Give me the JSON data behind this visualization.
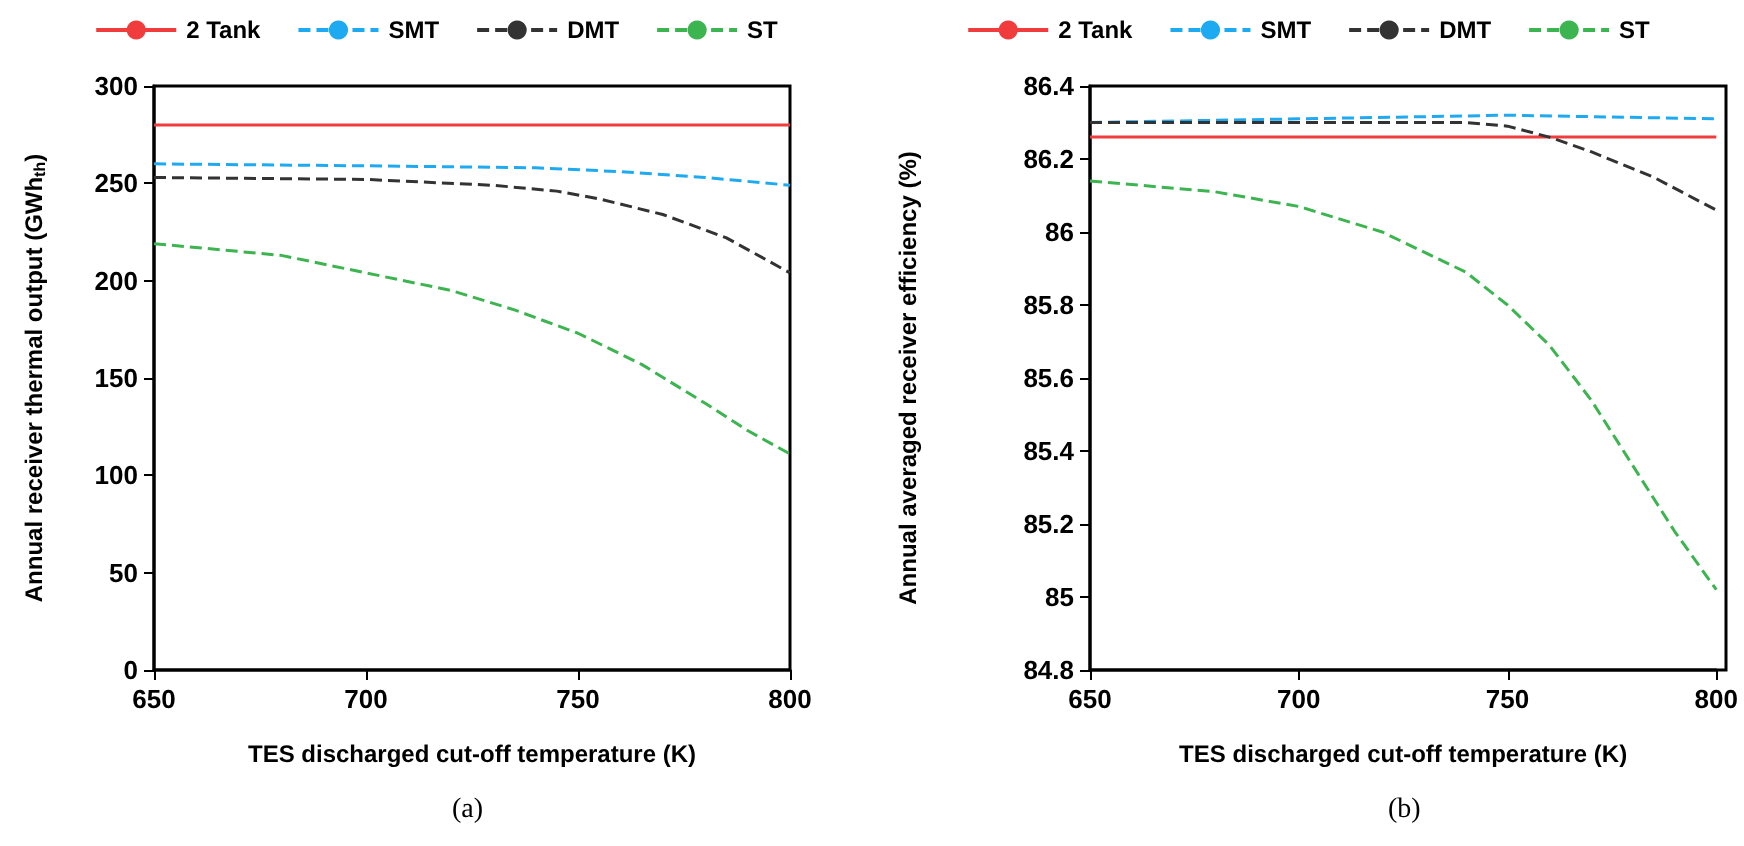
{
  "chart_data": [
    {
      "type": "line",
      "xlabel": "TES discharged cut-off temperature (K)",
      "ylabel": "Annual receiver thermal output (GWh$_{th}$)",
      "xlim": [
        650,
        800
      ],
      "xticks": [
        650,
        700,
        750,
        800
      ],
      "ylim": [
        0,
        300
      ],
      "yticks": [
        0,
        50,
        100,
        150,
        200,
        250,
        300
      ],
      "grid": false,
      "legend": "top",
      "marker": "none",
      "annotations": [
        "(a)"
      ],
      "series": [
        {
          "name": "2 Tank",
          "color": "#f03c3c",
          "line_style": "solid",
          "x": [
            650,
            800
          ],
          "values": [
            280,
            280
          ]
        },
        {
          "name": "SMT",
          "color": "#1eaaf0",
          "line_style": "dashed",
          "x": [
            650,
            700,
            740,
            760,
            780,
            800
          ],
          "values": [
            260,
            259,
            258,
            256,
            253,
            249
          ]
        },
        {
          "name": "DMT",
          "color": "#333333",
          "line_style": "dashed",
          "x": [
            650,
            700,
            730,
            745,
            755,
            770,
            785,
            800
          ],
          "values": [
            253,
            252,
            249,
            246,
            242,
            234,
            222,
            204
          ]
        },
        {
          "name": "ST",
          "color": "#3cb450",
          "line_style": "dashed",
          "x": [
            650,
            680,
            700,
            720,
            735,
            750,
            765,
            780,
            790,
            800
          ],
          "values": [
            219,
            213,
            204,
            195,
            185,
            173,
            157,
            137,
            123,
            111
          ]
        }
      ]
    },
    {
      "type": "line",
      "xlabel": "TES discharged cut-off temperature (K)",
      "ylabel": "Annual averaged receiver efficiency (%)",
      "xlim": [
        650,
        800
      ],
      "xticks": [
        650,
        700,
        750,
        800
      ],
      "ylim": [
        84.8,
        86.4
      ],
      "yticks": [
        84.8,
        85,
        85.2,
        85.4,
        85.6,
        85.8,
        86,
        86.2,
        86.4
      ],
      "grid": false,
      "legend": "top",
      "marker": "none",
      "annotations": [
        "(b)"
      ],
      "series": [
        {
          "name": "2 Tank",
          "color": "#f03c3c",
          "line_style": "solid",
          "x": [
            650,
            800
          ],
          "values": [
            86.26,
            86.26
          ]
        },
        {
          "name": "SMT",
          "color": "#1eaaf0",
          "line_style": "dashed",
          "x": [
            650,
            700,
            750,
            800
          ],
          "values": [
            86.3,
            86.31,
            86.32,
            86.31
          ]
        },
        {
          "name": "DMT",
          "color": "#333333",
          "line_style": "dashed",
          "x": [
            650,
            700,
            740,
            750,
            760,
            770,
            785,
            800
          ],
          "values": [
            86.3,
            86.3,
            86.3,
            86.29,
            86.26,
            86.22,
            86.15,
            86.06
          ]
        },
        {
          "name": "ST",
          "color": "#3cb450",
          "line_style": "dashed",
          "x": [
            650,
            680,
            700,
            720,
            740,
            750,
            760,
            770,
            780,
            790,
            800
          ],
          "values": [
            86.14,
            86.11,
            86.07,
            86.0,
            85.89,
            85.8,
            85.69,
            85.54,
            85.36,
            85.18,
            85.02
          ]
        }
      ]
    }
  ]
}
